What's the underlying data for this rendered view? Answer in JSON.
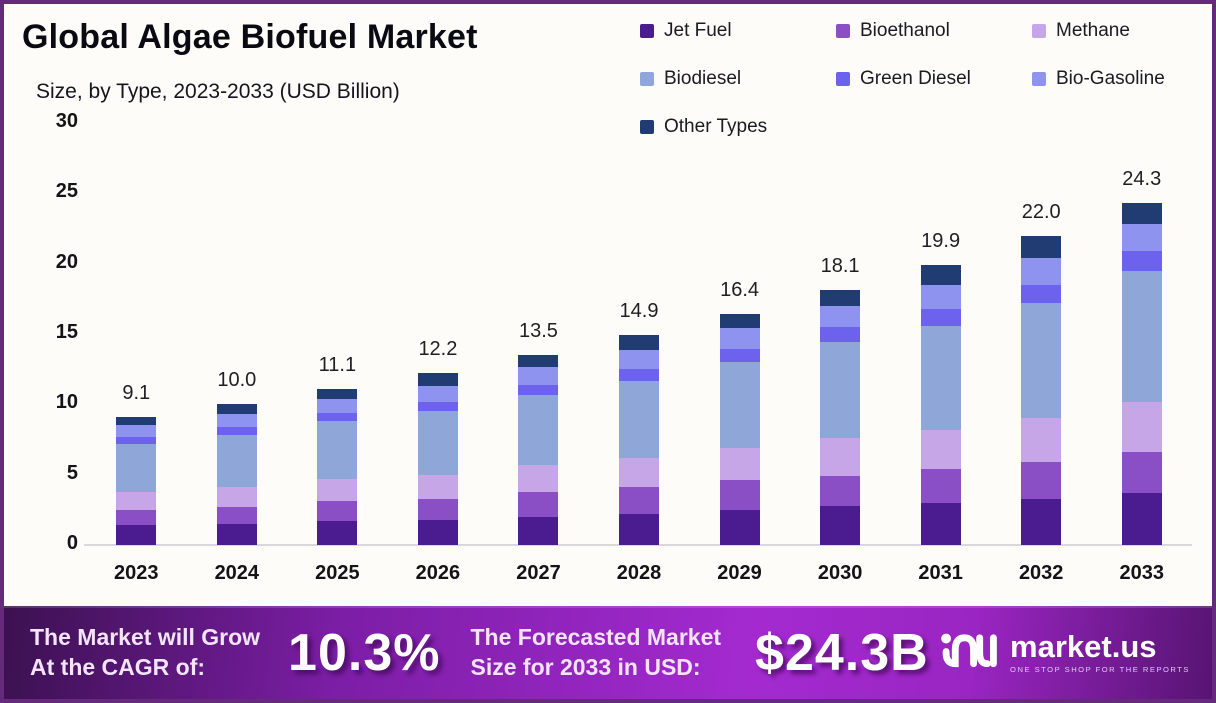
{
  "header": {
    "title": "Global Algae Biofuel Market",
    "subtitle": "Size, by Type, 2023-2033 (USD Billion)"
  },
  "chart_data": {
    "type": "bar",
    "stacked": true,
    "title": "Global Algae Biofuel Market Size, by Type, 2023-2033 (USD Billion)",
    "xlabel": "",
    "ylabel": "",
    "ylim": [
      0,
      30
    ],
    "yticks": [
      0,
      5,
      10,
      15,
      20,
      25,
      30
    ],
    "grid": false,
    "legend_position": "top-right",
    "categories": [
      "2023",
      "2024",
      "2025",
      "2026",
      "2027",
      "2028",
      "2029",
      "2030",
      "2031",
      "2032",
      "2033"
    ],
    "series": [
      {
        "name": "Jet Fuel",
        "color": "#4b1c8f",
        "values": [
          1.4,
          1.5,
          1.7,
          1.8,
          2.0,
          2.2,
          2.5,
          2.8,
          3.0,
          3.3,
          3.7
        ]
      },
      {
        "name": "Bioethanol",
        "color": "#8b4fc5",
        "values": [
          1.1,
          1.2,
          1.4,
          1.5,
          1.8,
          1.9,
          2.1,
          2.1,
          2.4,
          2.6,
          2.9
        ]
      },
      {
        "name": "Methane",
        "color": "#c6a6e6",
        "values": [
          1.3,
          1.4,
          1.6,
          1.7,
          1.9,
          2.1,
          2.3,
          2.7,
          2.8,
          3.1,
          3.6
        ]
      },
      {
        "name": "Biodiesel",
        "color": "#8fa7d8",
        "values": [
          3.4,
          3.7,
          4.1,
          4.5,
          5.0,
          5.5,
          6.1,
          6.8,
          7.4,
          8.2,
          9.3
        ]
      },
      {
        "name": "Green Diesel",
        "color": "#6d62ed",
        "values": [
          0.5,
          0.6,
          0.6,
          0.7,
          0.7,
          0.8,
          0.9,
          1.1,
          1.2,
          1.3,
          1.4
        ]
      },
      {
        "name": "Bio-Gasoline",
        "color": "#8d93ee",
        "values": [
          0.8,
          0.9,
          1.0,
          1.1,
          1.3,
          1.4,
          1.5,
          1.5,
          1.7,
          1.9,
          1.9
        ]
      },
      {
        "name": "Other Types",
        "color": "#213c72",
        "values": [
          0.6,
          0.7,
          0.7,
          0.9,
          0.8,
          1.0,
          1.0,
          1.1,
          1.4,
          1.6,
          1.5
        ]
      }
    ],
    "totals": [
      9.1,
      10.0,
      11.1,
      12.2,
      13.5,
      14.9,
      16.4,
      18.1,
      19.9,
      22.0,
      24.3
    ],
    "total_labels": [
      "9.1",
      "10.0",
      "11.1",
      "12.2",
      "13.5",
      "14.9",
      "16.4",
      "18.1",
      "19.9",
      "22.0",
      "24.3"
    ]
  },
  "footer": {
    "cagr_label_line1": "The Market will Grow",
    "cagr_label_line2": "At the CAGR of:",
    "cagr_value": "10.3%",
    "forecast_label_line1": "The Forecasted Market",
    "forecast_label_line2": "Size for 2033 in USD:",
    "forecast_value": "$24.3B",
    "brand": {
      "name": "market.us",
      "tagline": "ONE STOP SHOP FOR THE REPORTS",
      "icon": "market-us-logo-icon"
    }
  },
  "colors": {
    "frame_border": "#662a7c",
    "background": "#fdfcf8",
    "baseline": "#d9d9d9",
    "banner_gradient_start": "#3b1150",
    "banner_gradient_mid": "#a42ad0",
    "banner_gradient_end": "#571472"
  }
}
